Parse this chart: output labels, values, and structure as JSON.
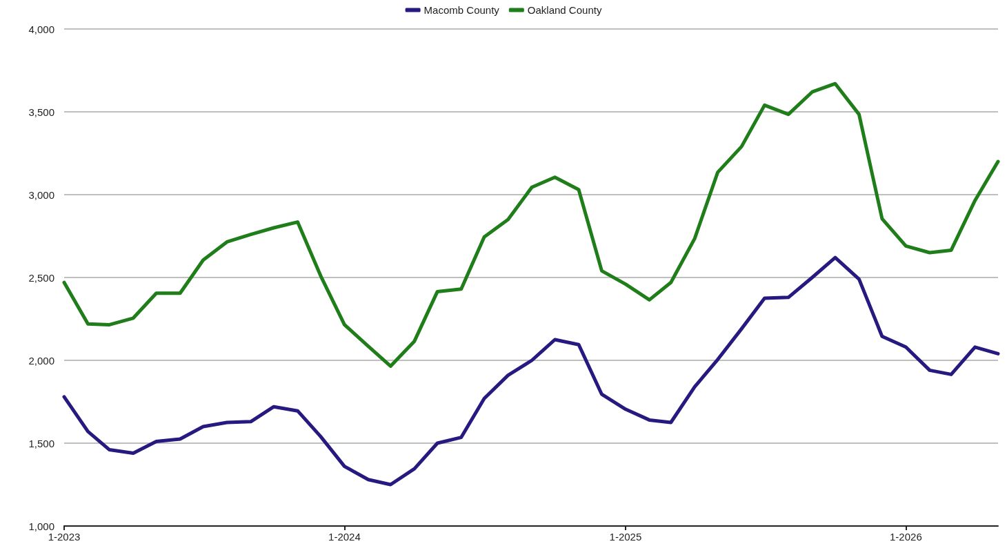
{
  "chart_data": {
    "type": "line",
    "x": [
      "2023-01",
      "2023-02",
      "2023-03",
      "2023-04",
      "2023-05",
      "2023-06",
      "2023-07",
      "2023-08",
      "2023-09",
      "2023-10",
      "2023-11",
      "2023-12",
      "2024-01",
      "2024-02",
      "2024-03",
      "2024-04",
      "2024-05",
      "2024-06",
      "2024-07",
      "2024-08",
      "2024-09",
      "2024-10",
      "2024-11",
      "2024-12",
      "2025-01",
      "2025-02",
      "2025-03",
      "2025-04",
      "2025-05",
      "2025-06",
      "2025-07",
      "2025-08",
      "2025-09",
      "2025-10",
      "2025-11",
      "2025-12",
      "2026-01",
      "2026-02",
      "2026-03",
      "2026-04",
      "2026-05"
    ],
    "series": [
      {
        "name": "Macomb County",
        "color": "#26197f",
        "values": [
          1780,
          1570,
          1460,
          1440,
          1510,
          1525,
          1600,
          1625,
          1630,
          1720,
          1695,
          1540,
          1360,
          1280,
          1250,
          1345,
          1500,
          1535,
          1770,
          1910,
          2000,
          2125,
          2095,
          1795,
          1705,
          1640,
          1625,
          1840,
          2005,
          2190,
          2375,
          2380,
          2500,
          2620,
          2490,
          2145,
          2080,
          1940,
          1915,
          2080,
          2040
        ]
      },
      {
        "name": "Oakland County",
        "color": "#1f7d1a",
        "values": [
          2470,
          2220,
          2215,
          2255,
          2405,
          2405,
          2605,
          2715,
          2760,
          2800,
          2835,
          2510,
          2215,
          2085,
          1965,
          2115,
          2415,
          2430,
          2745,
          2850,
          3045,
          3105,
          3030,
          2540,
          2460,
          2365,
          2470,
          2735,
          3135,
          3290,
          3540,
          3485,
          3620,
          3670,
          3485,
          2855,
          2690,
          2650,
          2665,
          2965,
          3200
        ]
      }
    ],
    "xlim": [
      "2023-01",
      "2026-05"
    ],
    "xticks": [
      {
        "value": "2023-01",
        "label": "1-2023"
      },
      {
        "value": "2024-01",
        "label": "1-2024"
      },
      {
        "value": "2025-01",
        "label": "1-2025"
      },
      {
        "value": "2026-01",
        "label": "1-2026"
      }
    ],
    "ylim": [
      1000,
      4000
    ],
    "yticks": [
      {
        "value": 1000,
        "label": "1,000"
      },
      {
        "value": 1500,
        "label": "1,500"
      },
      {
        "value": 2000,
        "label": "2,000"
      },
      {
        "value": 2500,
        "label": "2,500"
      },
      {
        "value": 3000,
        "label": "3,000"
      },
      {
        "value": 3500,
        "label": "3,500"
      },
      {
        "value": 4000,
        "label": "4,000"
      }
    ],
    "grid": "y",
    "legend": "top",
    "marker": "none",
    "line_style": "solid"
  }
}
